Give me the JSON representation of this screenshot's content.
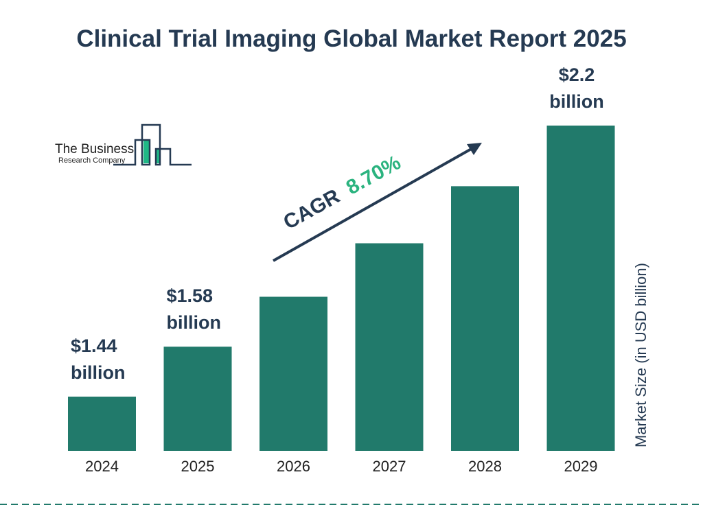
{
  "title": "Clinical Trial Imaging Global Market Report 2025",
  "logo": {
    "line1": "The Business",
    "line2": "Research Company"
  },
  "colors": {
    "bar": "#217a6b",
    "text": "#253a52",
    "cagr": "#2bb37f",
    "logo_green": "#20b886"
  },
  "cagr": {
    "label": "CAGR",
    "value": "8.70%"
  },
  "chart_data": {
    "type": "bar",
    "categories": [
      "2024",
      "2025",
      "2026",
      "2027",
      "2028",
      "2029"
    ],
    "values": [
      1.44,
      1.58,
      1.72,
      1.87,
      2.03,
      2.2
    ],
    "data_labels": [
      [
        "$1.44",
        "billion"
      ],
      [
        "$1.58",
        "billion"
      ],
      null,
      null,
      null,
      [
        "$2.2",
        "billion"
      ]
    ],
    "ylabel": "Market Size (in USD billion)",
    "xlabel": "",
    "grid": false
  }
}
